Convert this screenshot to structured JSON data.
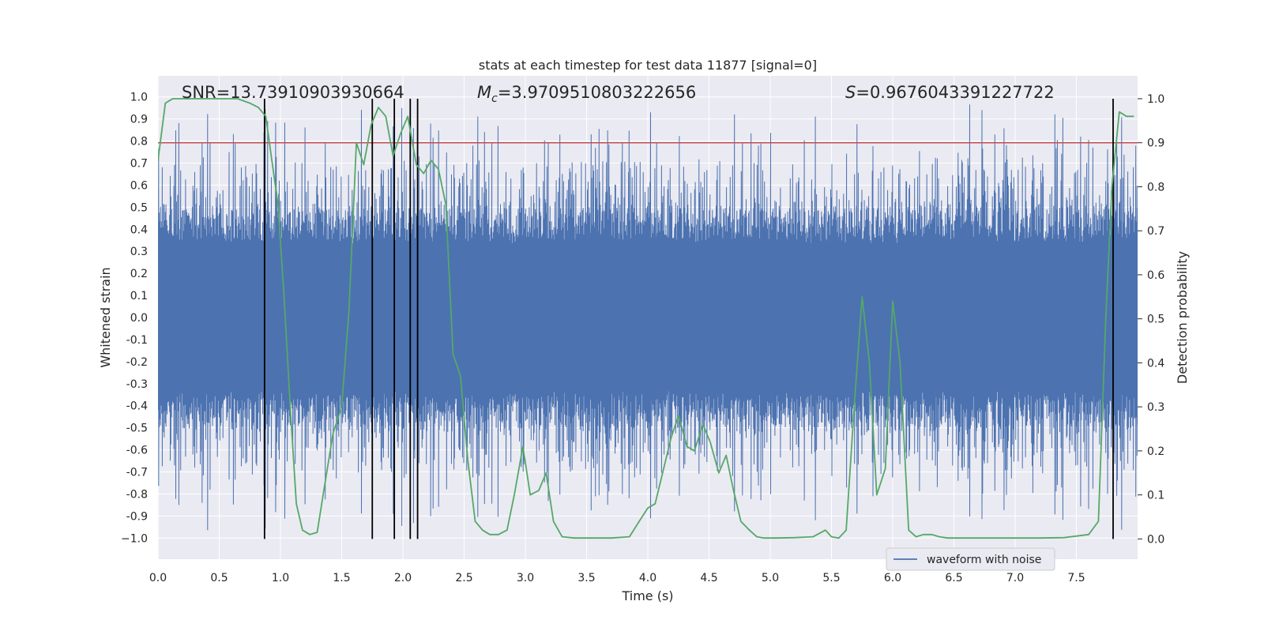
{
  "chart_data": {
    "type": "line",
    "title": "stats at each timestep for test data 11877 [signal=0]",
    "xlabel": "Time (s)",
    "ylabel": "Whitened strain",
    "ylabel_right": "Detection probability",
    "xlim": [
      0,
      8
    ],
    "ylim": [
      -1.0957,
      1.0957
    ],
    "ylim_right": [
      -0.046,
      1.052
    ],
    "x_ticks": [
      {
        "value": 0.0,
        "label": "0.0"
      },
      {
        "value": 0.5,
        "label": "0.5"
      },
      {
        "value": 1.0,
        "label": "1.0"
      },
      {
        "value": 1.5,
        "label": "1.5"
      },
      {
        "value": 2.0,
        "label": "2.0"
      },
      {
        "value": 2.5,
        "label": "2.5"
      },
      {
        "value": 3.0,
        "label": "3.0"
      },
      {
        "value": 3.5,
        "label": "3.5"
      },
      {
        "value": 4.0,
        "label": "4.0"
      },
      {
        "value": 4.5,
        "label": "4.5"
      },
      {
        "value": 5.0,
        "label": "5.0"
      },
      {
        "value": 5.5,
        "label": "5.5"
      },
      {
        "value": 6.0,
        "label": "6.0"
      },
      {
        "value": 6.5,
        "label": "6.5"
      },
      {
        "value": 7.0,
        "label": "7.0"
      },
      {
        "value": 7.5,
        "label": "7.5"
      }
    ],
    "y_ticks": [
      {
        "value": 1.0,
        "label": "1.0"
      },
      {
        "value": 0.9,
        "label": "0.9"
      },
      {
        "value": 0.8,
        "label": "0.8"
      },
      {
        "value": 0.7,
        "label": "0.7"
      },
      {
        "value": 0.6,
        "label": "0.6"
      },
      {
        "value": 0.5,
        "label": "0.5"
      },
      {
        "value": 0.4,
        "label": "0.4"
      },
      {
        "value": 0.3,
        "label": "0.3"
      },
      {
        "value": 0.2,
        "label": "0.2"
      },
      {
        "value": 0.1,
        "label": "0.1"
      },
      {
        "value": 0.0,
        "label": "0.0"
      },
      {
        "value": -0.1,
        "label": "-0.1"
      },
      {
        "value": -0.2,
        "label": "-0.2"
      },
      {
        "value": -0.3,
        "label": "-0.3"
      },
      {
        "value": -0.4,
        "label": "-0.4"
      },
      {
        "value": -0.5,
        "label": "-0.5"
      },
      {
        "value": -0.6,
        "label": "-0.6"
      },
      {
        "value": -0.7,
        "label": "-0.7"
      },
      {
        "value": -0.8,
        "label": "-0.8"
      },
      {
        "value": -0.9,
        "label": "-0.9"
      },
      {
        "value": -1.0,
        "label": "−1.0"
      }
    ],
    "y_right_ticks": [
      {
        "value": 1.0,
        "label": "1.0"
      },
      {
        "value": 0.9,
        "label": "0.9"
      },
      {
        "value": 0.8,
        "label": "0.8"
      },
      {
        "value": 0.7,
        "label": "0.7"
      },
      {
        "value": 0.6,
        "label": "0.6"
      },
      {
        "value": 0.5,
        "label": "0.5"
      },
      {
        "value": 0.4,
        "label": "0.4"
      },
      {
        "value": 0.3,
        "label": "0.3"
      },
      {
        "value": 0.2,
        "label": "0.2"
      },
      {
        "value": 0.1,
        "label": "0.1"
      },
      {
        "value": 0.0,
        "label": "0.0"
      }
    ],
    "threshold": {
      "value": 0.9,
      "axis": "right",
      "color": "#c44e52"
    },
    "detection_markers": [
      0.87,
      1.75,
      1.93,
      2.06,
      2.12,
      7.8
    ],
    "annotations": {
      "snr": "SNR=13.73910903930664",
      "chirp_mass_symbol": "M",
      "chirp_mass_subscript": "c",
      "chirp_mass_value": "=3.9709510803222656",
      "significance_symbol": "S",
      "significance_value": "=0.9676043391227722"
    },
    "legend": {
      "label": "waveform with noise",
      "location": "lower-right"
    },
    "series": [
      {
        "name": "waveform with noise",
        "axis": "left",
        "color": "#4c72b0",
        "style": "dense-noise",
        "typical_range": [
          -0.35,
          0.35
        ],
        "peak_range": [
          -1.0,
          0.97
        ],
        "samples": 1600,
        "seed": 11877
      },
      {
        "name": "Detection probability",
        "axis": "right",
        "color": "#55a868",
        "x": [
          0.0,
          0.06,
          0.12,
          0.2,
          0.3,
          0.5,
          0.65,
          0.75,
          0.82,
          0.88,
          0.93,
          0.98,
          1.03,
          1.08,
          1.13,
          1.18,
          1.24,
          1.3,
          1.36,
          1.43,
          1.5,
          1.56,
          1.62,
          1.68,
          1.74,
          1.8,
          1.86,
          1.92,
          1.98,
          2.04,
          2.11,
          2.17,
          2.23,
          2.29,
          2.35,
          2.41,
          2.47,
          2.53,
          2.59,
          2.65,
          2.71,
          2.78,
          2.85,
          2.91,
          2.98,
          3.04,
          3.11,
          3.17,
          3.23,
          3.3,
          3.4,
          3.5,
          3.7,
          3.85,
          3.93,
          4.0,
          4.06,
          4.13,
          4.19,
          4.25,
          4.32,
          4.38,
          4.45,
          4.51,
          4.58,
          4.64,
          4.7,
          4.76,
          4.83,
          4.89,
          4.95,
          5.05,
          5.2,
          5.35,
          5.45,
          5.5,
          5.56,
          5.62,
          5.69,
          5.75,
          5.81,
          5.87,
          5.94,
          6.0,
          6.06,
          6.13,
          6.19,
          6.25,
          6.32,
          6.38,
          6.45,
          6.6,
          6.8,
          7.0,
          7.2,
          7.4,
          7.6,
          7.68,
          7.74,
          7.79,
          7.85,
          7.91,
          7.97
        ],
        "y": [
          0.86,
          0.99,
          1.0,
          1.0,
          1.0,
          1.0,
          1.0,
          0.99,
          0.98,
          0.96,
          0.86,
          0.76,
          0.55,
          0.3,
          0.08,
          0.02,
          0.01,
          0.015,
          0.12,
          0.24,
          0.3,
          0.52,
          0.9,
          0.85,
          0.94,
          0.98,
          0.96,
          0.87,
          0.92,
          0.96,
          0.85,
          0.83,
          0.86,
          0.84,
          0.76,
          0.42,
          0.37,
          0.18,
          0.04,
          0.02,
          0.01,
          0.01,
          0.02,
          0.1,
          0.21,
          0.1,
          0.11,
          0.15,
          0.04,
          0.005,
          0.002,
          0.002,
          0.002,
          0.005,
          0.04,
          0.07,
          0.08,
          0.16,
          0.23,
          0.28,
          0.21,
          0.2,
          0.26,
          0.22,
          0.15,
          0.19,
          0.11,
          0.04,
          0.02,
          0.005,
          0.002,
          0.002,
          0.003,
          0.005,
          0.02,
          0.005,
          0.002,
          0.02,
          0.32,
          0.55,
          0.4,
          0.1,
          0.16,
          0.54,
          0.4,
          0.02,
          0.005,
          0.01,
          0.01,
          0.005,
          0.002,
          0.002,
          0.002,
          0.002,
          0.002,
          0.003,
          0.01,
          0.04,
          0.5,
          0.8,
          0.97,
          0.96,
          0.96
        ]
      }
    ]
  }
}
